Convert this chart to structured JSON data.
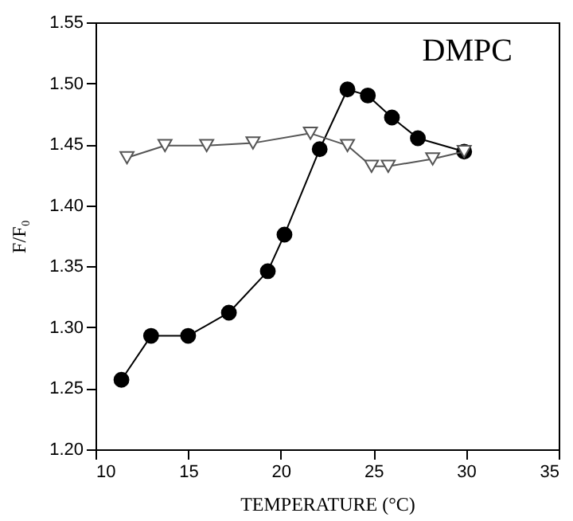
{
  "chart_data": {
    "type": "line",
    "xlabel": "TEMPERATURE (°C)",
    "ylabel": "F/F₀",
    "annotations": [
      "DMPC"
    ],
    "xlim": [
      10,
      35
    ],
    "xticks": [
      10,
      15,
      20,
      25,
      30,
      35
    ],
    "ylim": [
      1.2,
      1.55
    ],
    "yticks": [
      {
        "value": 1.2,
        "label": "1.20"
      },
      {
        "value": 1.25,
        "label": "1.25"
      },
      {
        "value": 1.3,
        "label": "1.30"
      },
      {
        "value": 1.35,
        "label": "1.35"
      },
      {
        "value": 1.4,
        "label": "1.40"
      },
      {
        "value": 1.45,
        "label": "1.45"
      },
      {
        "value": 1.5,
        "label": "1.50"
      },
      {
        "value": 1.55,
        "label": "1.55"
      }
    ],
    "grid": false,
    "series": [
      {
        "color": "#000000",
        "marker": "circle",
        "x": [
          11.4,
          13.0,
          15.0,
          17.2,
          19.3,
          20.2,
          22.1,
          23.6,
          24.7,
          26.0,
          27.4,
          29.9
        ],
        "values": [
          1.257,
          1.293,
          1.293,
          1.312,
          1.346,
          1.376,
          1.446,
          1.495,
          1.49,
          1.472,
          1.455,
          1.444
        ]
      },
      {
        "color": "#555555",
        "marker": "triangle-down",
        "x": [
          11.7,
          13.75,
          16.0,
          18.5,
          21.6,
          23.6,
          24.9,
          25.8,
          28.2,
          29.9
        ],
        "values": [
          1.439,
          1.449,
          1.449,
          1.451,
          1.459,
          1.449,
          1.432,
          1.432,
          1.438,
          1.444
        ]
      }
    ]
  }
}
